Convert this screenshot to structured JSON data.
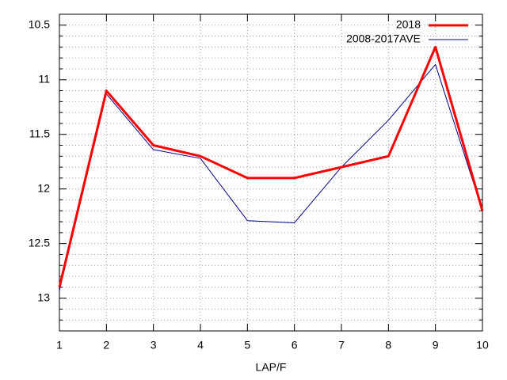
{
  "chart_data": {
    "type": "line",
    "xlabel": "LAP/F",
    "x": [
      1,
      2,
      3,
      4,
      5,
      6,
      7,
      8,
      9,
      10
    ],
    "series": [
      {
        "name": "2018",
        "color": "#ff0000",
        "width": 3,
        "values": [
          12.9,
          11.1,
          11.6,
          11.7,
          11.9,
          11.9,
          11.8,
          11.7,
          10.7,
          12.2
        ]
      },
      {
        "name": "2008-2017AVE",
        "color": "#00008b",
        "width": 1,
        "values": [
          12.93,
          11.13,
          11.64,
          11.72,
          12.29,
          12.31,
          11.8,
          11.37,
          10.86,
          12.2
        ]
      }
    ],
    "xlim": [
      1,
      10
    ],
    "xticks": [
      1,
      2,
      3,
      4,
      5,
      6,
      7,
      8,
      9,
      10
    ],
    "ylim": [
      13.3,
      10.4
    ],
    "yticks": [
      10.5,
      11,
      11.5,
      12,
      12.5,
      13
    ],
    "yminorticks": [
      10.6,
      10.7,
      10.8,
      10.9,
      11.1,
      11.2,
      11.3,
      11.4,
      11.6,
      11.7,
      11.8,
      11.9,
      12.1,
      12.2,
      12.3,
      12.4,
      12.6,
      12.7,
      12.8,
      12.9,
      13.1,
      13.2
    ],
    "grid": true,
    "legend": "top-right"
  }
}
